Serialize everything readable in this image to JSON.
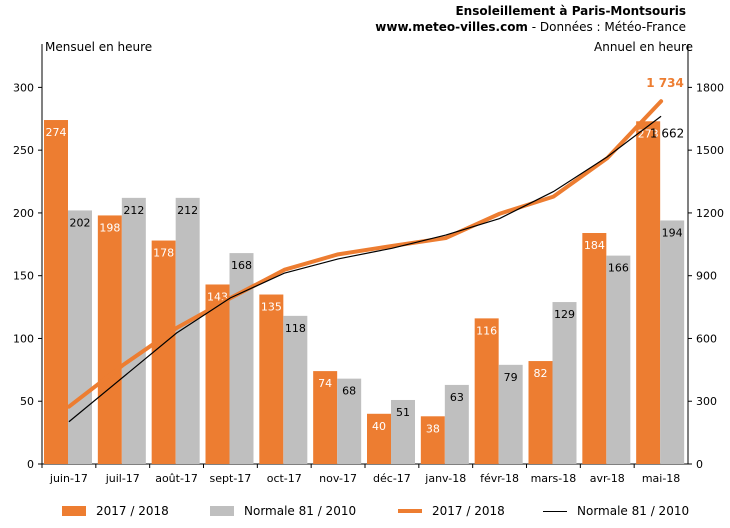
{
  "title": "Ensoleillement à Paris-Montsouris",
  "subtitle_site": "www.meteo-villes.com",
  "subtitle_rest": " - Données : Météo-France",
  "chart_data": {
    "type": "bar",
    "categories": [
      "juin-17",
      "juil-17",
      "août-17",
      "sept-17",
      "oct-17",
      "nov-17",
      "déc-17",
      "janv-18",
      "févr-18",
      "mars-18",
      "avr-18",
      "mai-18"
    ],
    "ylabel_left": "Mensuel en heure",
    "ylabel_right": "Annuel en heure",
    "ylim_left": [
      0,
      325
    ],
    "yticks_left": [
      0,
      50,
      100,
      150,
      200,
      250,
      300
    ],
    "ylim_right": [
      0,
      1950
    ],
    "yticks_right": [
      0,
      300,
      600,
      900,
      1200,
      1500,
      1800
    ],
    "series": [
      {
        "name": "2017 / 2018",
        "kind": "bar",
        "axis": "left",
        "color": "#ed7d31",
        "values": [
          274,
          198,
          178,
          143,
          135,
          74,
          40,
          38,
          116,
          82,
          184,
          273
        ]
      },
      {
        "name": "Normale 81 / 2010",
        "kind": "bar",
        "axis": "left",
        "color": "#bfbfbf",
        "values": [
          202,
          212,
          212,
          168,
          118,
          68,
          51,
          63,
          79,
          129,
          166,
          194
        ]
      },
      {
        "name": "2017 / 2018",
        "kind": "line",
        "axis": "right",
        "color": "#ed7d31",
        "values": [
          274,
          472,
          650,
          793,
          928,
          1002,
          1042,
          1080,
          1196,
          1278,
          1462,
          1734
        ]
      },
      {
        "name": "Normale 81 / 2010",
        "kind": "line",
        "axis": "right",
        "color": "#000000",
        "values": [
          202,
          414,
          626,
          794,
          912,
          980,
          1031,
          1094,
          1173,
          1302,
          1468,
          1662
        ]
      }
    ],
    "annotations": {
      "line_2017_end": "1 734",
      "line_normale_end": "1 662"
    },
    "grid": false,
    "legend_position": "bottom"
  }
}
